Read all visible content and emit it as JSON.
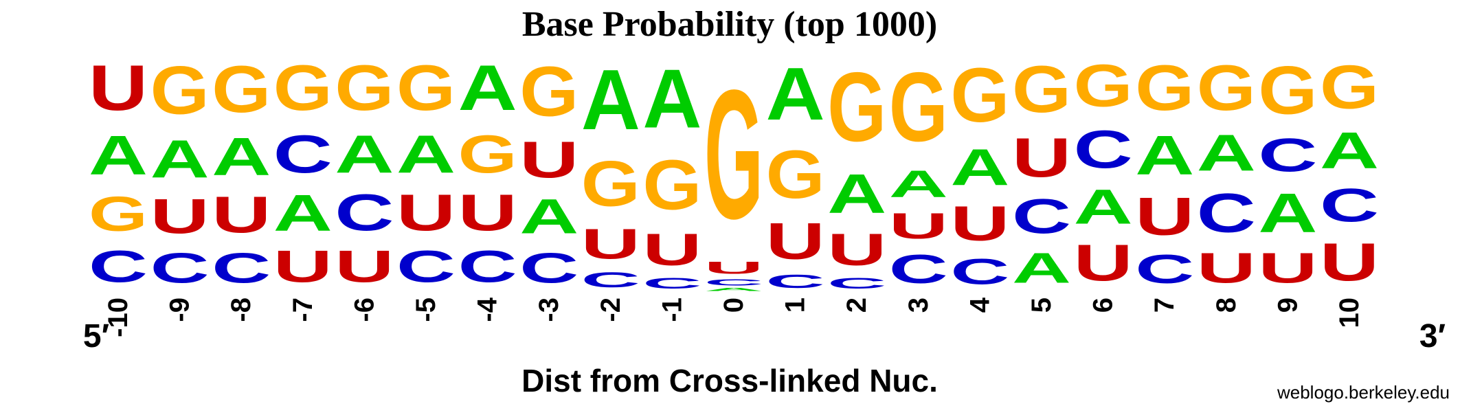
{
  "chart_data": {
    "type": "sequence-logo",
    "title": "Base Probability (top 1000)",
    "xlabel": "Dist from Cross-linked Nuc.",
    "ylabel": "",
    "end_labels": {
      "left": "5′",
      "right": "3′"
    },
    "credit": "weblogo.berkeley.edu",
    "ylim": [
      0,
      1
    ],
    "letter_colors": {
      "A": "#00cc00",
      "C": "#0000cc",
      "G": "#ffaa00",
      "U": "#cc0000"
    },
    "positions": [
      {
        "label": "-10",
        "stack": [
          [
            "C",
            0.21
          ],
          [
            "G",
            0.23
          ],
          [
            "A",
            0.26
          ],
          [
            "U",
            0.3
          ]
        ]
      },
      {
        "label": "-9",
        "stack": [
          [
            "C",
            0.2
          ],
          [
            "U",
            0.23
          ],
          [
            "A",
            0.25
          ],
          [
            "G",
            0.32
          ]
        ]
      },
      {
        "label": "-8",
        "stack": [
          [
            "C",
            0.2
          ],
          [
            "U",
            0.24
          ],
          [
            "A",
            0.25
          ],
          [
            "G",
            0.31
          ]
        ]
      },
      {
        "label": "-7",
        "stack": [
          [
            "U",
            0.21
          ],
          [
            "A",
            0.24
          ],
          [
            "C",
            0.25
          ],
          [
            "G",
            0.3
          ]
        ]
      },
      {
        "label": "-6",
        "stack": [
          [
            "U",
            0.21
          ],
          [
            "C",
            0.24
          ],
          [
            "A",
            0.25
          ],
          [
            "G",
            0.3
          ]
        ]
      },
      {
        "label": "-5",
        "stack": [
          [
            "C",
            0.21
          ],
          [
            "U",
            0.24
          ],
          [
            "A",
            0.25
          ],
          [
            "G",
            0.3
          ]
        ]
      },
      {
        "label": "-4",
        "stack": [
          [
            "C",
            0.21
          ],
          [
            "U",
            0.24
          ],
          [
            "G",
            0.25
          ],
          [
            "A",
            0.3
          ]
        ]
      },
      {
        "label": "-3",
        "stack": [
          [
            "C",
            0.2
          ],
          [
            "A",
            0.23
          ],
          [
            "U",
            0.24
          ],
          [
            "G",
            0.33
          ]
        ]
      },
      {
        "label": "-2",
        "stack": [
          [
            "C",
            0.1
          ],
          [
            "U",
            0.2
          ],
          [
            "G",
            0.3
          ],
          [
            "A",
            0.4
          ]
        ]
      },
      {
        "label": "-1",
        "stack": [
          [
            "C",
            0.07
          ],
          [
            "U",
            0.21
          ],
          [
            "G",
            0.33
          ],
          [
            "A",
            0.39
          ]
        ]
      },
      {
        "label": "0",
        "stack": [
          [
            "A",
            0.02
          ],
          [
            "C",
            0.04
          ],
          [
            "U",
            0.08
          ],
          [
            "G",
            0.86
          ]
        ]
      },
      {
        "label": "1",
        "stack": [
          [
            "C",
            0.09
          ],
          [
            "U",
            0.24
          ],
          [
            "G",
            0.32
          ],
          [
            "A",
            0.35
          ]
        ]
      },
      {
        "label": "2",
        "stack": [
          [
            "C",
            0.07
          ],
          [
            "U",
            0.21
          ],
          [
            "A",
            0.26
          ],
          [
            "G",
            0.46
          ]
        ]
      },
      {
        "label": "3",
        "stack": [
          [
            "C",
            0.19
          ],
          [
            "U",
            0.17
          ],
          [
            "A",
            0.18
          ],
          [
            "G",
            0.46
          ]
        ]
      },
      {
        "label": "4",
        "stack": [
          [
            "C",
            0.17
          ],
          [
            "U",
            0.23
          ],
          [
            "A",
            0.24
          ],
          [
            "G",
            0.36
          ]
        ]
      },
      {
        "label": "5",
        "stack": [
          [
            "A",
            0.2
          ],
          [
            "C",
            0.23
          ],
          [
            "U",
            0.26
          ],
          [
            "G",
            0.31
          ]
        ]
      },
      {
        "label": "6",
        "stack": [
          [
            "U",
            0.24
          ],
          [
            "A",
            0.23
          ],
          [
            "C",
            0.25
          ],
          [
            "G",
            0.28
          ]
        ]
      },
      {
        "label": "7",
        "stack": [
          [
            "C",
            0.19
          ],
          [
            "U",
            0.25
          ],
          [
            "A",
            0.26
          ],
          [
            "G",
            0.3
          ]
        ]
      },
      {
        "label": "8",
        "stack": [
          [
            "U",
            0.2
          ],
          [
            "C",
            0.26
          ],
          [
            "A",
            0.24
          ],
          [
            "G",
            0.3
          ]
        ]
      },
      {
        "label": "9",
        "stack": [
          [
            "U",
            0.2
          ],
          [
            "A",
            0.26
          ],
          [
            "C",
            0.22
          ],
          [
            "G",
            0.32
          ]
        ]
      },
      {
        "label": "10",
        "stack": [
          [
            "U",
            0.25
          ],
          [
            "C",
            0.22
          ],
          [
            "A",
            0.24
          ],
          [
            "G",
            0.29
          ]
        ]
      }
    ]
  }
}
